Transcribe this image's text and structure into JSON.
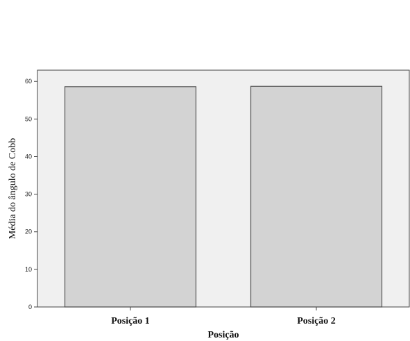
{
  "chart_data": {
    "type": "bar",
    "categories": [
      "Posição 1",
      "Posição 2"
    ],
    "values": [
      58.6,
      58.7
    ],
    "xlabel": "Posição",
    "ylabel": "Média do ângulo de Cobb",
    "ylim": [
      0,
      63
    ],
    "yticks": [
      "0",
      "10",
      "20",
      "30",
      "40",
      "50",
      "60"
    ],
    "grid": false,
    "colors": {
      "plot_background": "#f0f0f0",
      "bar_fill": "#d3d3d3",
      "bar_stroke": "#555555",
      "axis": "#444444"
    }
  }
}
